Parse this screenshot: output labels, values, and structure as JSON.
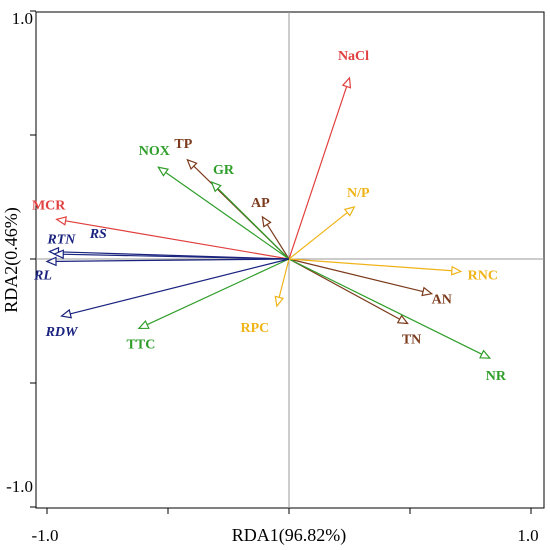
{
  "chart_data": {
    "type": "scatter",
    "subtype": "rda-biplot",
    "xlabel": "RDA1(96.82%)",
    "ylabel": "RDA2(0.46%)",
    "xlim": [
      -1.0,
      1.0
    ],
    "ylim": [
      -1.0,
      1.0
    ],
    "x_tick_labels": [
      "-1.0",
      "1.0"
    ],
    "y_tick_labels": [
      "1.0",
      "-1.0"
    ],
    "grid": false,
    "zero_lines": true,
    "colors": {
      "red": "#e0403f",
      "brown": "#7b3b1c",
      "green": "#2f9e2a",
      "yellow": "#f0b419",
      "navy": "#1a237e",
      "zero_line": "#9a9a9a"
    },
    "vectors": [
      {
        "label": "NaCl",
        "x": 0.25,
        "y": 0.73,
        "color": "red",
        "italic": false
      },
      {
        "label": "MCR",
        "x": -0.96,
        "y": 0.16,
        "color": "red",
        "italic": false
      },
      {
        "label": "TP",
        "x": -0.42,
        "y": 0.4,
        "color": "brown",
        "italic": false
      },
      {
        "label": "AP",
        "x": -0.11,
        "y": 0.17,
        "color": "brown",
        "italic": false
      },
      {
        "label": "AN",
        "x": 0.59,
        "y": -0.14,
        "color": "brown",
        "italic": false
      },
      {
        "label": "TN",
        "x": 0.49,
        "y": -0.26,
        "color": "brown",
        "italic": false
      },
      {
        "label": "NOX",
        "x": -0.54,
        "y": 0.37,
        "color": "green",
        "italic": false
      },
      {
        "label": "GR",
        "x": -0.32,
        "y": 0.31,
        "color": "green",
        "italic": false
      },
      {
        "label": "TTC",
        "x": -0.62,
        "y": -0.28,
        "color": "green",
        "italic": false
      },
      {
        "label": "NR",
        "x": 0.83,
        "y": -0.4,
        "color": "green",
        "italic": false
      },
      {
        "label": "N/P",
        "x": 0.27,
        "y": 0.21,
        "color": "yellow",
        "italic": false
      },
      {
        "label": "RNC",
        "x": 0.71,
        "y": -0.05,
        "color": "yellow",
        "italic": false
      },
      {
        "label": "RPC",
        "x": -0.05,
        "y": -0.19,
        "color": "yellow",
        "italic": false
      },
      {
        "label": "RTN",
        "x": -0.99,
        "y": 0.03,
        "color": "navy",
        "italic": true
      },
      {
        "label": "RS",
        "x": -0.97,
        "y": 0.02,
        "color": "navy",
        "italic": true
      },
      {
        "label": "RL",
        "x": -1.0,
        "y": -0.01,
        "color": "navy",
        "italic": true
      },
      {
        "label": "RDW",
        "x": -0.94,
        "y": -0.23,
        "color": "navy",
        "italic": true
      }
    ]
  }
}
